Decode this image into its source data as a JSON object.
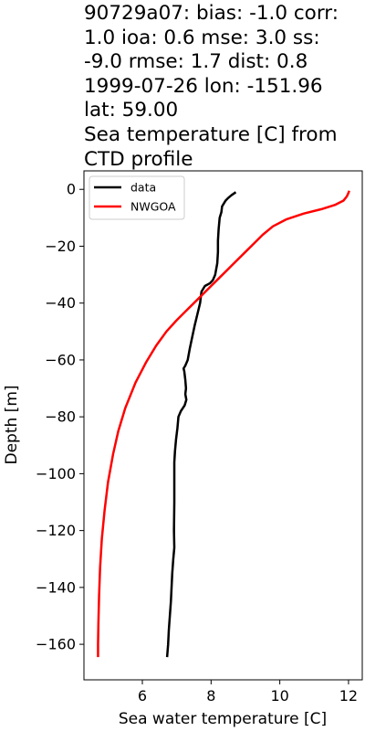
{
  "title_lines": [
    "90729a07: bias: -1.0  corr:",
    "1.0  ioa: 0.6  mse: 3.0  ss:",
    "-9.0  rmse: 1.7  dist: 0.8",
    "1999-07-26 lon: -151.96",
    "lat: 59.00",
    "Sea temperature [C] from",
    "CTD profile"
  ],
  "chart_data": {
    "type": "line",
    "xlabel": "Sea water temperature [C]",
    "ylabel": "Depth [m]",
    "xlim": [
      4.3,
      12.4
    ],
    "ylim": [
      -172.5,
      6.5
    ],
    "xticks": [
      6,
      8,
      10,
      12
    ],
    "yticks": [
      0,
      -20,
      -40,
      -60,
      -80,
      -100,
      -120,
      -140,
      -160
    ],
    "legend_position": "top-left",
    "grid": false,
    "series": [
      {
        "name": "data",
        "color": "#000000",
        "points": [
          [
            8.72,
            -1
          ],
          [
            8.6,
            -2
          ],
          [
            8.5,
            -3
          ],
          [
            8.42,
            -4
          ],
          [
            8.32,
            -6
          ],
          [
            8.3,
            -8
          ],
          [
            8.25,
            -10
          ],
          [
            8.22,
            -14
          ],
          [
            8.2,
            -18
          ],
          [
            8.2,
            -22
          ],
          [
            8.18,
            -26
          ],
          [
            8.12,
            -30
          ],
          [
            8.05,
            -32
          ],
          [
            7.97,
            -33
          ],
          [
            7.82,
            -34
          ],
          [
            7.72,
            -36
          ],
          [
            7.68,
            -40
          ],
          [
            7.6,
            -44
          ],
          [
            7.52,
            -48
          ],
          [
            7.45,
            -52
          ],
          [
            7.38,
            -56
          ],
          [
            7.32,
            -60
          ],
          [
            7.25,
            -62
          ],
          [
            7.2,
            -63
          ],
          [
            7.22,
            -64
          ],
          [
            7.25,
            -67
          ],
          [
            7.27,
            -70
          ],
          [
            7.25,
            -72
          ],
          [
            7.28,
            -74
          ],
          [
            7.23,
            -76
          ],
          [
            7.12,
            -78
          ],
          [
            7.05,
            -80
          ],
          [
            7.02,
            -84
          ],
          [
            6.98,
            -88
          ],
          [
            6.95,
            -92
          ],
          [
            6.93,
            -96
          ],
          [
            6.93,
            -100
          ],
          [
            6.93,
            -110
          ],
          [
            6.92,
            -120
          ],
          [
            6.93,
            -126
          ],
          [
            6.9,
            -130
          ],
          [
            6.87,
            -135
          ],
          [
            6.85,
            -140
          ],
          [
            6.83,
            -145
          ],
          [
            6.8,
            -150
          ],
          [
            6.77,
            -155
          ],
          [
            6.75,
            -160
          ],
          [
            6.72,
            -164.5
          ]
        ]
      },
      {
        "name": "NWGOA",
        "color": "#ff0000",
        "points": [
          [
            12.02,
            -0.5
          ],
          [
            12.0,
            -1.2
          ],
          [
            11.95,
            -2.5
          ],
          [
            11.85,
            -4
          ],
          [
            11.6,
            -5.5
          ],
          [
            11.2,
            -7
          ],
          [
            10.7,
            -8.5
          ],
          [
            10.2,
            -10.5
          ],
          [
            9.8,
            -13
          ],
          [
            9.5,
            -16
          ],
          [
            9.25,
            -19
          ],
          [
            9.0,
            -22
          ],
          [
            8.75,
            -25
          ],
          [
            8.5,
            -28
          ],
          [
            8.25,
            -31
          ],
          [
            8.0,
            -34
          ],
          [
            7.75,
            -37
          ],
          [
            7.5,
            -40
          ],
          [
            7.25,
            -43
          ],
          [
            7.0,
            -46
          ],
          [
            6.7,
            -50
          ],
          [
            6.4,
            -55
          ],
          [
            6.1,
            -61
          ],
          [
            5.8,
            -68
          ],
          [
            5.5,
            -77
          ],
          [
            5.3,
            -85
          ],
          [
            5.15,
            -93
          ],
          [
            5.0,
            -103
          ],
          [
            4.9,
            -113
          ],
          [
            4.82,
            -123
          ],
          [
            4.77,
            -133
          ],
          [
            4.74,
            -143
          ],
          [
            4.72,
            -153
          ],
          [
            4.71,
            -160
          ],
          [
            4.71,
            -164.5
          ]
        ]
      }
    ]
  }
}
